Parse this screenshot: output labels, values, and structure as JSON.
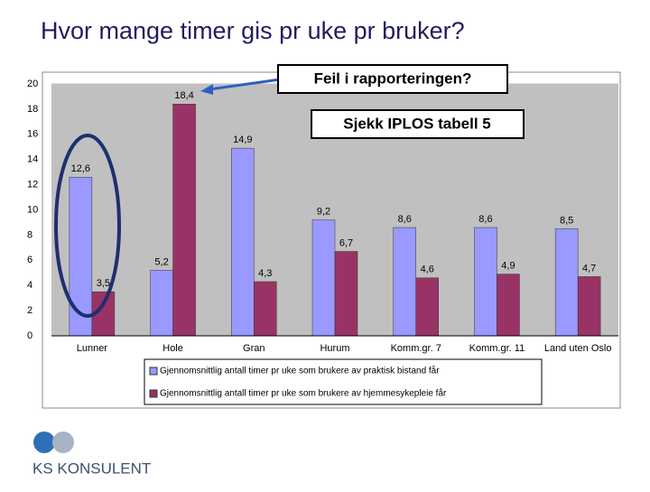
{
  "chart_data": {
    "type": "bar",
    "title": "Hvor mange timer gis pr uke pr bruker?",
    "categories": [
      "Lunner",
      "Hole",
      "Gran",
      "Hurum",
      "Komm.gr. 7",
      "Komm.gr. 11",
      "Land uten Oslo"
    ],
    "series": [
      {
        "name": "Gjennomsnittlig antall timer pr uke som brukere av praktisk bistand får",
        "color": "#9999ff",
        "values": [
          12.6,
          5.2,
          14.9,
          9.2,
          8.6,
          8.6,
          8.5
        ],
        "value_labels": [
          "12,6",
          "5,2",
          "14,9",
          "9,2",
          "8,6",
          "8,6",
          "8,5"
        ]
      },
      {
        "name": "Gjennomsnittlig antall timer pr uke som brukere av hjemmesykepleie får",
        "color": "#993366",
        "values": [
          3.5,
          18.4,
          4.3,
          6.7,
          4.6,
          4.9,
          4.7
        ],
        "value_labels": [
          "3,5",
          "18,4",
          "4,3",
          "6,7",
          "4,6",
          "4,9",
          "4,7"
        ]
      }
    ],
    "ylim": [
      0,
      20
    ],
    "yticks": [
      0,
      2,
      4,
      6,
      8,
      10,
      12,
      14,
      16,
      18,
      20
    ],
    "annotations": [
      "Feil i rapporteringen?",
      "Sjekk IPLOS tabell 5"
    ]
  },
  "logo": "KS KONSULENT"
}
